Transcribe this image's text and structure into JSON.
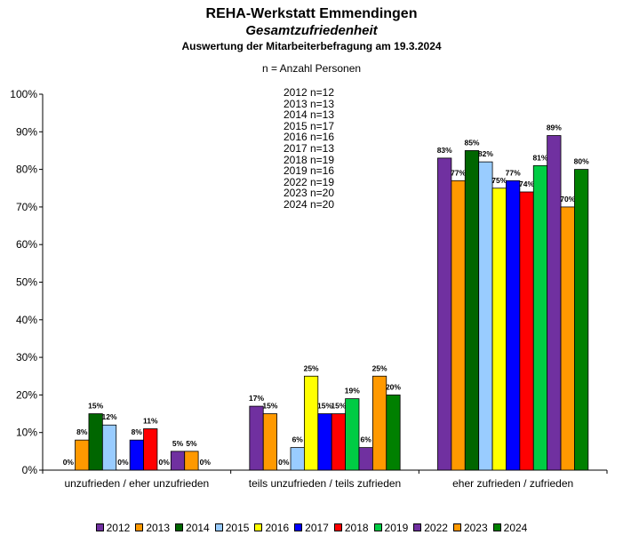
{
  "chart_data": {
    "type": "bar",
    "title": "REHA-Werkstatt Emmendingen",
    "subtitle": "Gesamtzufriedenheit",
    "subtitle2": "Auswertung der Mitarbeiterbefragung am 19.3.2024",
    "note": "n = Anzahl Personen",
    "n_list": [
      "2012 n=12",
      "2013 n=13",
      "2014 n=13",
      "2015 n=17",
      "2016 n=16",
      "2017 n=13",
      "2018 n=19",
      "2019 n=16",
      "2022 n=19",
      "2023 n=20",
      "2024 n=20"
    ],
    "categories": [
      "unzufrieden / eher unzufrieden",
      "teils unzufrieden / teils zufrieden",
      "eher zufrieden / zufrieden"
    ],
    "yticks": [
      "0%",
      "10%",
      "20%",
      "30%",
      "40%",
      "50%",
      "60%",
      "70%",
      "80%",
      "90%",
      "100%"
    ],
    "ylim": [
      0,
      100
    ],
    "legend_position": "bottom",
    "series": [
      {
        "name": "2012",
        "color": "#7030A0",
        "values": [
          0,
          17,
          83
        ]
      },
      {
        "name": "2013",
        "color": "#FF9900",
        "values": [
          8,
          15,
          77
        ]
      },
      {
        "name": "2014",
        "color": "#006600",
        "values": [
          15,
          0,
          85
        ]
      },
      {
        "name": "2015",
        "color": "#99CCFF",
        "values": [
          12,
          6,
          82
        ]
      },
      {
        "name": "2016",
        "color": "#FFFF00",
        "values": [
          0,
          25,
          75
        ]
      },
      {
        "name": "2017",
        "color": "#0000FF",
        "values": [
          8,
          15,
          77
        ]
      },
      {
        "name": "2018",
        "color": "#FF0000",
        "values": [
          11,
          15,
          74
        ]
      },
      {
        "name": "2019",
        "color": "#00CC44",
        "values": [
          0,
          19,
          81
        ]
      },
      {
        "name": "2022",
        "color": "#7030A0",
        "values": [
          5,
          6,
          89
        ]
      },
      {
        "name": "2023",
        "color": "#FF9900",
        "values": [
          5,
          25,
          70
        ]
      },
      {
        "name": "2024",
        "color": "#008000",
        "values": [
          0,
          20,
          80
        ]
      }
    ]
  }
}
